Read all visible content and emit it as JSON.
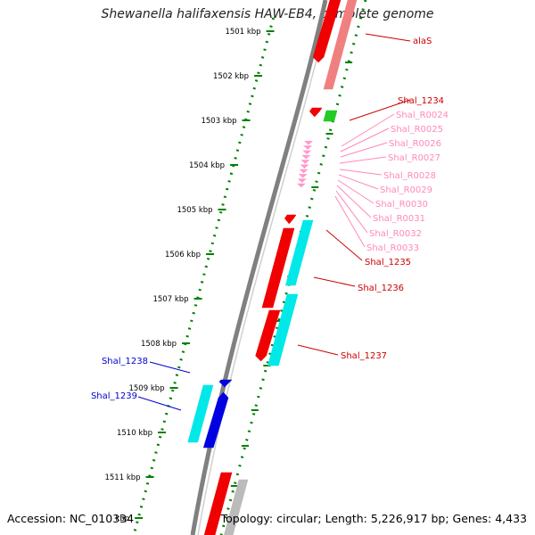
{
  "title": "Shewanella halifaxensis HAW-EB4, complete genome",
  "accession": "Accession: NC_010334",
  "topology": "Topology: circular; Length: 5,226,917 bp; Genes: 4,433",
  "colors": {
    "red": "#f00000",
    "pink_red": "#f08080",
    "green": "#22cc22",
    "pink": "#ff99cc",
    "cyan": "#00e8e8",
    "blue": "#0000e0",
    "gray": "#bbbbbb",
    "backbone": "#808080",
    "ruler": "#008000",
    "label_red": "#cc0000",
    "label_pink": "#ff88bb",
    "label_blue": "#0000cc"
  },
  "ruler_labels": [
    "1501 kbp",
    "1502 kbp",
    "1503 kbp",
    "1504 kbp",
    "1505 kbp",
    "1506 kbp",
    "1507 kbp",
    "1508 kbp",
    "1509 kbp",
    "1510 kbp",
    "1511 kbp",
    "kbp"
  ],
  "gene_labels": [
    {
      "text": "alaS",
      "color": "label_red"
    },
    {
      "text": "Shal_1234",
      "color": "label_red"
    },
    {
      "text": "Shal_R0024",
      "color": "label_pink"
    },
    {
      "text": "Shal_R0025",
      "color": "label_pink"
    },
    {
      "text": "Shal_R0026",
      "color": "label_pink"
    },
    {
      "text": "Shal_R0027",
      "color": "label_pink"
    },
    {
      "text": "Shal_R0028",
      "color": "label_pink"
    },
    {
      "text": "Shal_R0029",
      "color": "label_pink"
    },
    {
      "text": "Shal_R0030",
      "color": "label_pink"
    },
    {
      "text": "Shal_R0031",
      "color": "label_pink"
    },
    {
      "text": "Shal_R0032",
      "color": "label_pink"
    },
    {
      "text": "Shal_R0033",
      "color": "label_pink"
    },
    {
      "text": "Shal_1235",
      "color": "label_red"
    },
    {
      "text": "Shal_1236",
      "color": "label_red"
    },
    {
      "text": "Shal_1237",
      "color": "label_red"
    },
    {
      "text": "Shal_1238",
      "color": "label_blue"
    },
    {
      "text": "Shal_1239",
      "color": "label_blue"
    }
  ]
}
